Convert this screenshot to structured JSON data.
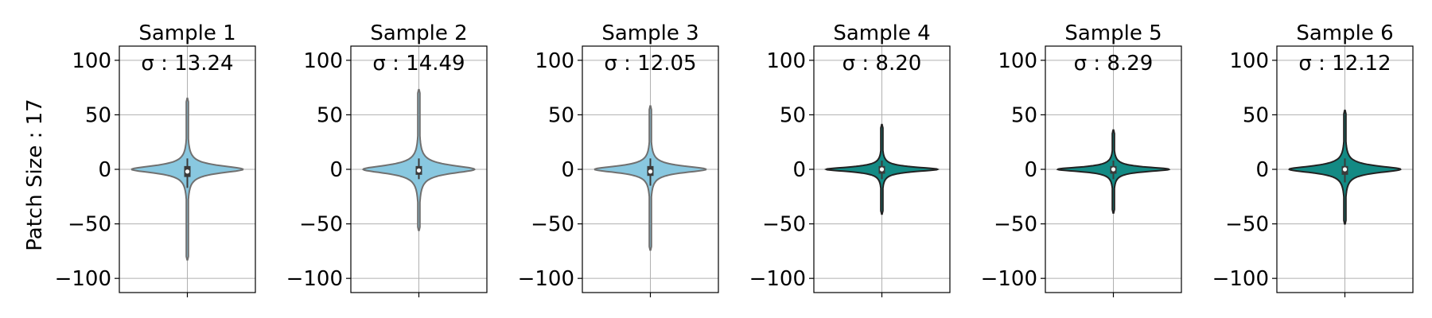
{
  "figure": {
    "ylabel": "Patch Size : 17"
  },
  "chart_data": [
    {
      "type": "violin",
      "title": "Sample 1",
      "annotation": "σ : 13.24",
      "sigma": 13.24,
      "ylim": [
        -113,
        113
      ],
      "yticks": [
        -100,
        -50,
        0,
        50,
        100
      ],
      "grid": true,
      "fill_color": "#89c8e0",
      "edge_color": "#707070",
      "range": [
        -83,
        65
      ],
      "iqr": [
        -7,
        3
      ],
      "whiskers": [
        -17,
        10
      ],
      "median": -2
    },
    {
      "type": "violin",
      "title": "Sample 2",
      "annotation": "σ : 14.49",
      "sigma": 14.49,
      "ylim": [
        -113,
        113
      ],
      "yticks": [
        -100,
        -50,
        0,
        50,
        100
      ],
      "grid": true,
      "fill_color": "#89c8e0",
      "edge_color": "#707070",
      "range": [
        -56,
        73
      ],
      "iqr": [
        -5,
        3
      ],
      "whiskers": [
        -9,
        10
      ],
      "median": -1
    },
    {
      "type": "violin",
      "title": "Sample 3",
      "annotation": "σ : 12.05",
      "sigma": 12.05,
      "ylim": [
        -113,
        113
      ],
      "yticks": [
        -100,
        -50,
        0,
        50,
        100
      ],
      "grid": true,
      "fill_color": "#89c8e0",
      "edge_color": "#707070",
      "range": [
        -74,
        58
      ],
      "iqr": [
        -6,
        3
      ],
      "whiskers": [
        -15,
        10
      ],
      "median": -2
    },
    {
      "type": "violin",
      "title": "Sample 4",
      "annotation": "σ : 8.20",
      "sigma": 8.2,
      "ylim": [
        -113,
        113
      ],
      "yticks": [
        -100,
        -50,
        0,
        50,
        100
      ],
      "grid": true,
      "fill_color": "#138a84",
      "edge_color": "#222222",
      "range": [
        -41,
        41
      ],
      "iqr": [
        -4,
        3
      ],
      "whiskers": [
        -9,
        8
      ],
      "median": 0
    },
    {
      "type": "violin",
      "title": "Sample 5",
      "annotation": "σ : 8.29",
      "sigma": 8.29,
      "ylim": [
        -113,
        113
      ],
      "yticks": [
        -100,
        -50,
        0,
        50,
        100
      ],
      "grid": true,
      "fill_color": "#138a84",
      "edge_color": "#222222",
      "range": [
        -40,
        36
      ],
      "iqr": [
        -4,
        3
      ],
      "whiskers": [
        -9,
        8
      ],
      "median": 0
    },
    {
      "type": "violin",
      "title": "Sample 6",
      "annotation": "σ : 12.12",
      "sigma": 12.12,
      "ylim": [
        -113,
        113
      ],
      "yticks": [
        -100,
        -50,
        0,
        50,
        100
      ],
      "grid": true,
      "fill_color": "#138a84",
      "edge_color": "#222222",
      "range": [
        -50,
        54
      ],
      "iqr": [
        -5,
        3
      ],
      "whiskers": [
        -12,
        10
      ],
      "median": 0
    }
  ]
}
